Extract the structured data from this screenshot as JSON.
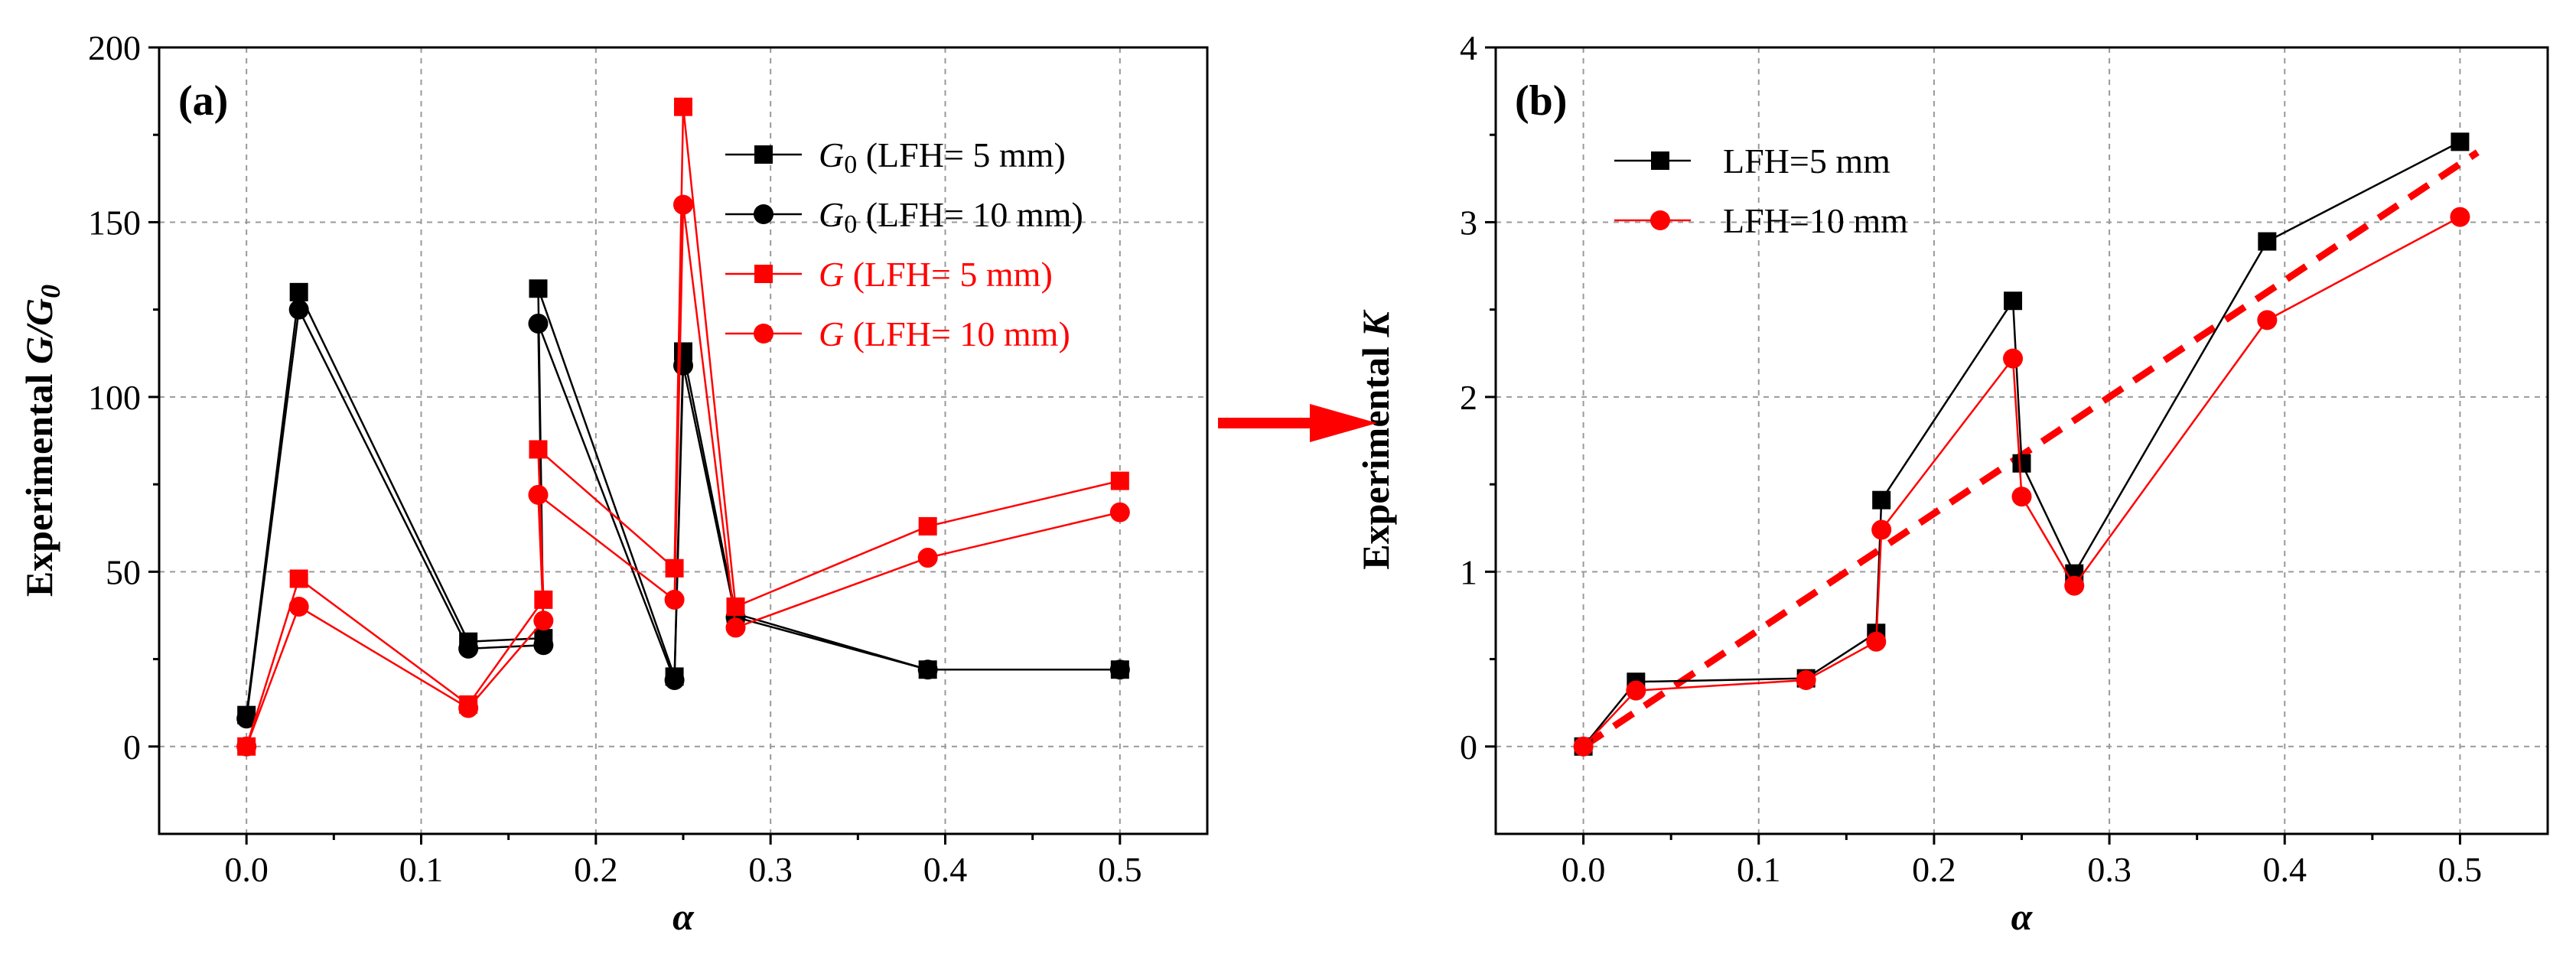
{
  "colors": {
    "black": "#000000",
    "red": "#ff0000",
    "grid": "#9a9a9a"
  },
  "chart_data": [
    {
      "type": "line",
      "panel_label": "(a)",
      "xlabel": "α",
      "ylabel": "Experimental G/G0",
      "xlim": [
        -0.05,
        0.55
      ],
      "ylim": [
        -25,
        200
      ],
      "xticks": [
        "0.0",
        "0.1",
        "0.2",
        "0.3",
        "0.4",
        "0.5"
      ],
      "yticks": [
        "0",
        "50",
        "100",
        "150",
        "200"
      ],
      "grid": true,
      "legend_position": "top-right",
      "series": [
        {
          "name_main": "G",
          "name_sub": "0",
          "name_rest": " (LFH= 5 mm)",
          "color": "#000000",
          "marker": "square",
          "x": [
            0.0,
            0.03,
            0.127,
            0.17,
            0.167,
            0.245,
            0.25,
            0.28,
            0.39,
            0.5
          ],
          "y": [
            9,
            130,
            30,
            31,
            131,
            20,
            113,
            38,
            22,
            22
          ]
        },
        {
          "name_main": "G",
          "name_sub": "0",
          "name_rest": " (LFH= 10 mm)",
          "color": "#000000",
          "marker": "circle",
          "x": [
            0.0,
            0.03,
            0.127,
            0.17,
            0.167,
            0.245,
            0.25,
            0.28,
            0.39,
            0.5
          ],
          "y": [
            8,
            125,
            28,
            29,
            121,
            19,
            109,
            37,
            22,
            22
          ]
        },
        {
          "name_main": "G",
          "name_sub": "",
          "name_rest": " (LFH= 5 mm)",
          "color": "#ff0000",
          "marker": "square",
          "x": [
            0.0,
            0.03,
            0.127,
            0.17,
            0.167,
            0.245,
            0.25,
            0.28,
            0.39,
            0.5
          ],
          "y": [
            0,
            48,
            12,
            42,
            85,
            51,
            183,
            40,
            63,
            76
          ]
        },
        {
          "name_main": "G",
          "name_sub": "",
          "name_rest": " (LFH= 10 mm)",
          "color": "#ff0000",
          "marker": "circle",
          "x": [
            0.0,
            0.03,
            0.127,
            0.17,
            0.167,
            0.245,
            0.25,
            0.28,
            0.39,
            0.5
          ],
          "y": [
            0,
            40,
            11,
            36,
            72,
            42,
            155,
            34,
            54,
            67
          ]
        }
      ]
    },
    {
      "type": "line",
      "panel_label": "(b)",
      "xlabel": "α",
      "ylabel": "Experimental K",
      "xlim": [
        -0.05,
        0.55
      ],
      "ylim": [
        -0.5,
        4
      ],
      "xticks": [
        "0.0",
        "0.1",
        "0.2",
        "0.3",
        "0.4",
        "0.5"
      ],
      "yticks": [
        "0",
        "1",
        "2",
        "3",
        "4"
      ],
      "grid": true,
      "legend_position": "top-left",
      "series": [
        {
          "name": "LFH=5 mm",
          "color": "#000000",
          "marker": "square",
          "x": [
            0.0,
            0.03,
            0.127,
            0.167,
            0.17,
            0.245,
            0.25,
            0.28,
            0.39,
            0.5
          ],
          "y": [
            0,
            0.37,
            0.39,
            0.65,
            1.41,
            2.55,
            1.62,
            0.99,
            2.89,
            3.46
          ]
        },
        {
          "name": "LFH=10 mm",
          "color": "#ff0000",
          "marker": "circle",
          "x": [
            0.0,
            0.03,
            0.127,
            0.167,
            0.17,
            0.245,
            0.25,
            0.28,
            0.39,
            0.5
          ],
          "y": [
            0,
            0.32,
            0.38,
            0.6,
            1.24,
            2.22,
            1.43,
            0.92,
            2.44,
            3.03
          ]
        }
      ],
      "trend_line": {
        "color": "#ff0000",
        "style": "dashed",
        "x": [
          0.0,
          0.51
        ],
        "y": [
          0,
          3.4
        ]
      }
    }
  ],
  "arrow": {
    "color": "#ff0000",
    "direction": "right"
  }
}
